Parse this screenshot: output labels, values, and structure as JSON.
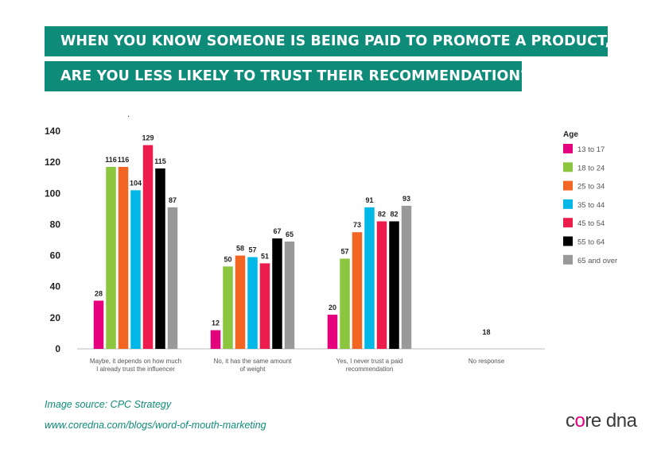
{
  "title_line1": "WHEN YOU KNOW SOMEONE IS BEING PAID TO PROMOTE A PRODUCT,",
  "title_line2": "ARE YOU LESS LIKELY TO TRUST THEIR RECOMMENDATION?",
  "dot": ".",
  "source_text": "Image source: CPC Strategy",
  "url_text": "www.coredna.com/blogs/word-of-mouth-marketing",
  "logo": {
    "part1": "c",
    "accent": "o",
    "part2": "re dna"
  },
  "colors": {
    "banner": "#0e8b79",
    "caption": "#0e8b79",
    "logo_accent": "#e6007e"
  },
  "chart_data": {
    "type": "bar",
    "categories": [
      [
        "Maybe, it depends on how much",
        "I already trust the influencer"
      ],
      [
        "No, it has the same amount",
        "of weight"
      ],
      [
        "Yes, I never trust a paid",
        "recommendation"
      ],
      [
        "No response"
      ]
    ],
    "legend_title": "Age",
    "legend_position": "right",
    "ylim": [
      0,
      140
    ],
    "yticks": [
      0,
      20,
      40,
      60,
      80,
      100,
      120,
      140
    ],
    "grid": false,
    "series": [
      {
        "name": "13 to 17",
        "color": "#e4007c",
        "values": [
          28,
          12,
          20,
          null
        ]
      },
      {
        "name": "18 to 24",
        "color": "#8cc63f",
        "values": [
          116,
          50,
          57,
          null
        ]
      },
      {
        "name": "25 to 34",
        "color": "#f26522",
        "values": [
          116,
          58,
          73,
          null
        ]
      },
      {
        "name": "35 to 44",
        "color": "#00b7e5",
        "values": [
          104,
          57,
          91,
          null
        ]
      },
      {
        "name": "45 to 54",
        "color": "#ec1d4d",
        "values": [
          129,
          51,
          82,
          null
        ]
      },
      {
        "name": "55 to 64",
        "color": "#000000",
        "values": [
          115,
          67,
          82,
          null
        ]
      },
      {
        "name": "65 and over",
        "color": "#999999",
        "values": [
          87,
          65,
          93,
          null
        ]
      }
    ],
    "bar_heights": [
      [
        31,
        12,
        22,
        null
      ],
      [
        117,
        53,
        58,
        null
      ],
      [
        117,
        60,
        75,
        null
      ],
      [
        102,
        59,
        91,
        null
      ],
      [
        131,
        55,
        82,
        null
      ],
      [
        116,
        71,
        82,
        null
      ],
      [
        91,
        69,
        92,
        null
      ]
    ],
    "annotations": [
      {
        "text": "18",
        "category_index": 3
      }
    ]
  }
}
